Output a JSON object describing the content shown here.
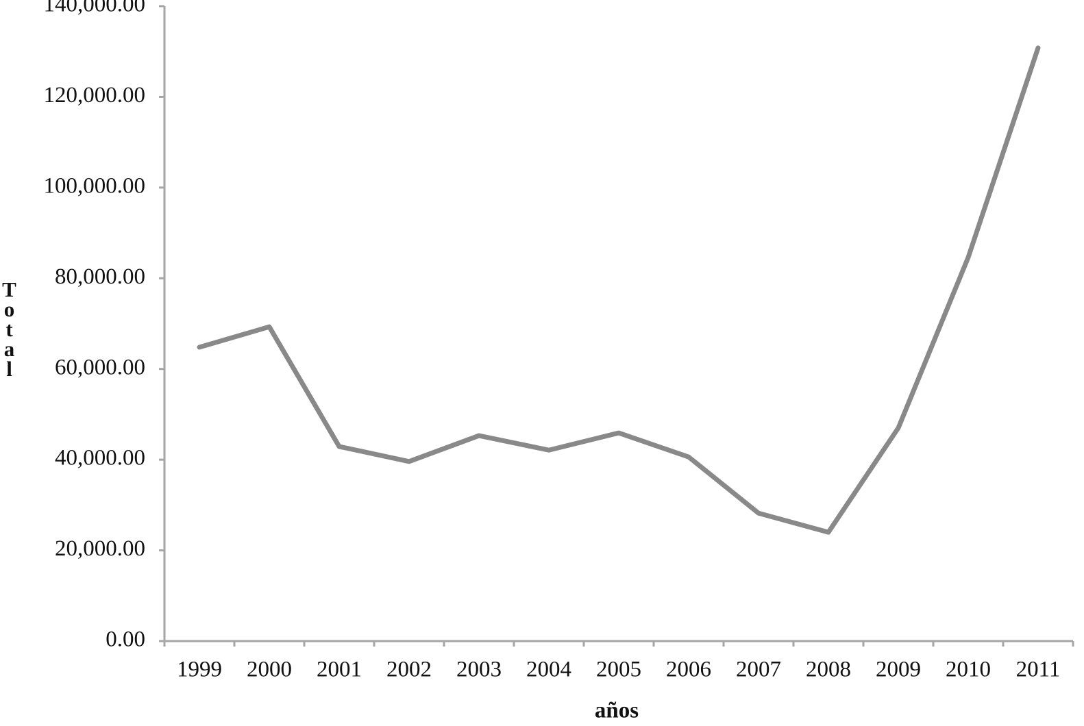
{
  "chart_data": {
    "type": "line",
    "x_label": "años",
    "y_label": "Total",
    "categories": [
      "1999",
      "2000",
      "2001",
      "2002",
      "2003",
      "2004",
      "2005",
      "2006",
      "2007",
      "2008",
      "2009",
      "2010",
      "2011"
    ],
    "series": [
      {
        "color": "#898989",
        "values": [
          64800,
          69300,
          42900,
          39600,
          45300,
          42100,
          45900,
          40600,
          28200,
          24000,
          47000,
          84600,
          130800
        ]
      }
    ],
    "ylim": [
      0,
      140000
    ],
    "yticks": [
      {
        "value": 0,
        "label": "0.00"
      },
      {
        "value": 20000,
        "label": "20,000.00"
      },
      {
        "value": 40000,
        "label": "40,000.00"
      },
      {
        "value": 60000,
        "label": "60,000.00"
      },
      {
        "value": 80000,
        "label": "80,000.00"
      },
      {
        "value": 100000,
        "label": "100,000.00"
      },
      {
        "value": 120000,
        "label": "120,000.00"
      },
      {
        "value": 140000,
        "label": "140,000.00"
      }
    ],
    "grid": false
  }
}
